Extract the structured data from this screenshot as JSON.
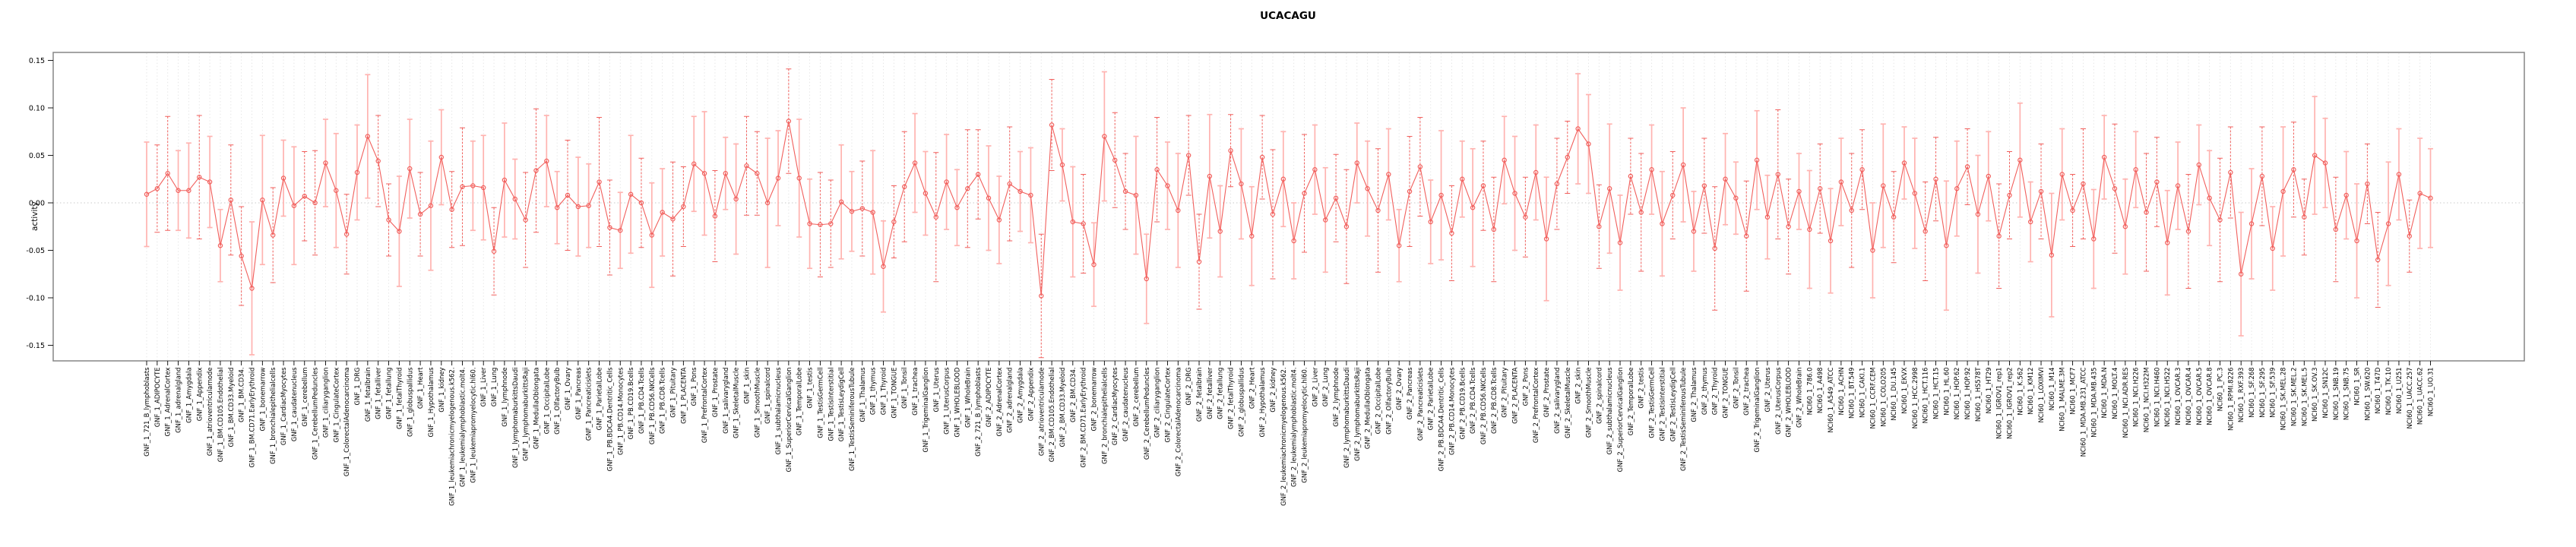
{
  "title": "UCACAGU",
  "chart_data": {
    "type": "scatter-errorbar",
    "title": "UCACAGU",
    "xlabel": "",
    "ylabel": "activity",
    "ylim": [
      -0.17,
      0.16
    ],
    "yticks": [
      -0.15,
      -0.1,
      -0.05,
      0.0,
      0.05,
      0.1,
      0.15
    ],
    "grid": "dotted vertical line per category, dotted horizontal line at 0",
    "legend": "none",
    "point_shape": "open-circle",
    "x_tick_rotation": 90,
    "colors": {
      "point": "#f15f5c",
      "line": "#f15f5c",
      "errorbar_dashed": "#f15f5c",
      "errorbar_solid": "#ffb3b0",
      "gridline": "#e3e3e3",
      "zero_line": "#c9c9c9",
      "box": "#858585",
      "text": "#000000"
    },
    "category_groups": [
      {
        "prefix": "GNF_1_",
        "names": [
          "721_B_lymphoblasts",
          "ADIPOCYTE",
          "AdrenalCortex",
          "adrenalgland",
          "Amygdala",
          "Appendix",
          "atrioventricularnode",
          "BM.CD105.Endothelial",
          "BM.CD33.Myeloid",
          "BM.CD34.",
          "BM.CD71.EarlyErythroid",
          "bonemarrow",
          "bronchialepithelialcells",
          "CardiacMyocytes",
          "caudatenucleus",
          "cerebellum",
          "CerebellumPeduncles",
          "ciliaryganglion",
          "CingulateCortex",
          "ColorectalAdenocarcinoma",
          "DRG",
          "fetalbrain",
          "fetalliver",
          "fetallung",
          "fetalThyroid",
          "globuspallidus",
          "Heart",
          "Hypothalamus",
          "kidney",
          "leukemiachronicmyelogenous.k562.",
          "leukemialymphoblastic.molt4.",
          "leukemiapromyelocytic.hl60.",
          "Liver",
          "Lung",
          "lymphnode",
          "lymphomaburkittsDaudi",
          "lymphomaburkittsRaji",
          "MedullaOblongata",
          "OccipitalLobe",
          "OlfactoryBulb",
          "Ovary",
          "Pancreas",
          "Pancreaticislets",
          "ParietalLobe",
          "PB.BDCA4.Dentritic_Cells",
          "PB.CD14.Monocytes",
          "PB.CD19.Bcells",
          "PB.CD4.Tcells",
          "PB.CD56.NKCells",
          "PB.CD8.Tcells",
          "Pituitary",
          "PLACENTA",
          "Pons",
          "PrefrontalCortex",
          "Prostate",
          "salivarygland",
          "SkeletalMuscle",
          "skin",
          "SmoothMuscle",
          "spinalcord",
          "subthalamicnucleus",
          "SuperiorCervicalGanglion",
          "TemporalLobe",
          "testis",
          "TestisGermCell",
          "TestisInterstitial",
          "TestisLeydigCell",
          "TestisSeminiferousTubule",
          "Thalamus",
          "thymus",
          "Thyroid",
          "TONGUE",
          "Tonsil",
          "trachea",
          "TrigeminalGanglion",
          "Uterus",
          "UterusCorpus",
          "WHOLEBLOOD",
          "WholeBrain"
        ]
      },
      {
        "prefix": "GNF_2_",
        "names": [
          "721_B_lymphoblasts",
          "ADIPOCYTE",
          "AdrenalCortex",
          "adrenalgland",
          "Amygdala",
          "Appendix",
          "atrioventricularnode",
          "BM.CD105.Endothelial",
          "BM.CD33.Myeloid",
          "BM.CD34.",
          "BM.CD71.EarlyErythroid",
          "bonemarrow",
          "bronchialepithelialcells",
          "CardiacMyocytes",
          "caudatenucleus",
          "cerebellum",
          "CerebellumPeduncles",
          "ciliaryganglion",
          "CingulateCortex",
          "ColorectalAdenocarcinoma",
          "DRG",
          "fetalbrain",
          "fetalliver",
          "fetallung",
          "fetalThyroid",
          "globuspallidus",
          "Heart",
          "Hypothalamus",
          "kidney",
          "leukemiachronicmyelogenous.k562.",
          "leukemialymphoblastic.molt4.",
          "leukemiapromyelocytic.hl60.",
          "Liver",
          "Lung",
          "lymphnode",
          "lymphomaburkittsDaudi",
          "lymphomaburkittsRaji",
          "MedullaOblongata",
          "OccipitalLobe",
          "OlfactoryBulb",
          "Ovary",
          "Pancreas",
          "Pancreaticislets",
          "ParietalLobe",
          "PB.BDCA4.Dentritic_Cells",
          "PB.CD14.Monocytes",
          "PB.CD19.Bcells",
          "PB.CD4.Tcells",
          "PB.CD56.NKCells",
          "PB.CD8.Tcells",
          "Pituitary",
          "PLACENTA",
          "Pons",
          "PrefrontalCortex",
          "Prostate",
          "salivarygland",
          "SkeletalMuscle",
          "skin",
          "SmoothMuscle",
          "spinalcord",
          "subthalamicnucleus",
          "SuperiorCervicalGanglion",
          "TemporalLobe",
          "testis",
          "TestisGermCell",
          "TestisInterstitial",
          "TestisLeydigCell",
          "TestisSeminiferousTubule",
          "Thalamus",
          "thymus",
          "Thyroid",
          "TONGUE",
          "Tonsil",
          "trachea",
          "TrigeminalGanglion",
          "Uterus",
          "UterusCorpus",
          "WHOLEBLOOD",
          "WholeBrain"
        ]
      },
      {
        "prefix": "NCI60_1_",
        "names": [
          "786.0",
          "A498",
          "A549_ATCC",
          "ACHN",
          "BT.549",
          "CAKI.1",
          "CCRF.CEM",
          "COLO205",
          "DU.145",
          "EKVX",
          "HCC.2998",
          "HCT.116",
          "HCT.15",
          "HL.60",
          "HOP.62",
          "HOP.92",
          "HS578T",
          "HT29",
          "IGROV1_rep1",
          "IGROV1_rep2",
          "K.562",
          "KM12",
          "LOXIMVI",
          "M14",
          "MALME.3M",
          "MCF7",
          "MDA.MB.231_ATCC",
          "MDA.MB.435",
          "MDA.N",
          "MOLT.4",
          "NCI.ADR.RES",
          "NCI.H226",
          "NCI.H322M",
          "NCI.H460",
          "NCI.H522",
          "OVCAR.3",
          "OVCAR.4",
          "OVCAR.5",
          "OVCAR.8",
          "PC.3",
          "RPMI.8226",
          "RXF.393",
          "SF.268",
          "SF.295",
          "SF.539",
          "SK.MEL.28",
          "SK.MEL.2",
          "SK.MEL.5",
          "SK.OV.3",
          "SN12C",
          "SNB.19",
          "SNB.75",
          "SR",
          "SW.620",
          "T47D",
          "TK.10",
          "U251",
          "UACC.257",
          "UACC.62",
          "UO.31"
        ]
      }
    ],
    "series": [
      {
        "name": "activity",
        "bar_style_pattern": "sddssds",
        "values": [
          0.009,
          0.015,
          0.031,
          0.013,
          0.013,
          0.027,
          0.022,
          -0.045,
          0.003,
          -0.056,
          -0.09,
          0.003,
          -0.034,
          0.026,
          -0.003,
          0.007,
          0.0,
          0.042,
          0.013,
          -0.033,
          0.032,
          0.07,
          0.044,
          -0.018,
          -0.03,
          0.036,
          -0.012,
          -0.003,
          0.048,
          -0.007,
          0.017,
          0.018,
          0.016,
          -0.051,
          0.024,
          0.004,
          -0.018,
          0.034,
          0.044,
          -0.005,
          0.008,
          -0.004,
          -0.003,
          0.022,
          -0.026,
          -0.029,
          0.009,
          0.0,
          -0.034,
          -0.01,
          -0.017,
          -0.004,
          0.041,
          0.031,
          -0.014,
          0.031,
          0.004,
          0.039,
          0.031,
          0.0,
          0.026,
          0.086,
          0.026,
          -0.022,
          -0.023,
          -0.022,
          0.001,
          -0.009,
          -0.006,
          -0.01,
          -0.067,
          -0.02,
          0.017,
          0.042,
          0.01,
          -0.015,
          0.022,
          -0.005,
          0.015,
          0.03,
          0.005,
          -0.018,
          0.02,
          0.012,
          0.008,
          -0.098,
          0.082,
          0.04,
          -0.02,
          -0.022,
          -0.065,
          0.07,
          0.045,
          0.012,
          0.008,
          -0.08,
          0.035,
          0.018,
          -0.008,
          0.05,
          -0.062,
          0.028,
          -0.03,
          0.055,
          0.02,
          -0.035,
          0.048,
          -0.012,
          0.025,
          -0.04,
          0.01,
          0.035,
          -0.018,
          0.005,
          -0.025,
          0.042,
          0.015,
          -0.008,
          0.03,
          -0.045,
          0.012,
          0.038,
          -0.02,
          0.008,
          -0.032,
          0.025,
          -0.005,
          0.018,
          -0.028,
          0.045,
          0.01,
          -0.015,
          0.032,
          -0.038,
          0.02,
          0.048,
          0.078,
          0.062,
          -0.025,
          0.015,
          -0.042,
          0.028,
          -0.01,
          0.035,
          -0.022,
          0.008,
          0.04,
          -0.03,
          0.018,
          -0.048,
          0.025,
          0.005,
          -0.035,
          0.045,
          -0.015,
          0.03,
          -0.025,
          0.012,
          -0.028,
          0.015,
          -0.04,
          0.022,
          -0.008,
          0.035,
          -0.05,
          0.018,
          -0.015,
          0.042,
          0.01,
          -0.03,
          0.025,
          -0.045,
          0.015,
          0.038,
          -0.012,
          0.028,
          -0.035,
          0.008,
          0.045,
          -0.02,
          0.012,
          -0.055,
          0.03,
          -0.008,
          0.02,
          -0.038,
          0.048,
          0.015,
          -0.025,
          0.035,
          -0.01,
          0.022,
          -0.042,
          0.018,
          -0.03,
          0.04,
          0.005,
          -0.018,
          0.032,
          -0.075,
          -0.022,
          0.028,
          -0.048,
          0.012,
          0.035,
          -0.015,
          0.05,
          0.042,
          -0.028,
          0.008,
          -0.04,
          0.02,
          -0.06,
          -0.022,
          0.03,
          -0.035,
          0.01,
          0.005
        ],
        "errors": [
          0.055,
          0.046,
          0.06,
          0.042,
          0.05,
          0.065,
          0.048,
          0.038,
          0.058,
          0.052,
          0.07,
          0.068,
          0.05,
          0.04,
          0.062,
          0.047,
          0.055,
          0.046,
          0.06,
          0.042,
          0.05,
          0.065,
          0.048,
          0.038,
          0.058,
          0.052,
          0.044,
          0.068,
          0.05,
          0.04,
          0.062,
          0.047,
          0.055,
          0.046,
          0.06,
          0.042,
          0.05,
          0.065,
          0.048,
          0.038,
          0.058,
          0.052,
          0.044,
          0.068,
          0.05,
          0.04,
          0.062,
          0.047,
          0.055,
          0.046,
          0.06,
          0.042,
          0.05,
          0.065,
          0.048,
          0.038,
          0.058,
          0.052,
          0.044,
          0.068,
          0.05,
          0.055,
          0.062,
          0.047,
          0.055,
          0.046,
          0.06,
          0.042,
          0.05,
          0.065,
          0.048,
          0.038,
          0.058,
          0.052,
          0.044,
          0.068,
          0.05,
          0.04,
          0.062,
          0.047,
          0.055,
          0.046,
          0.06,
          0.042,
          0.05,
          0.065,
          0.048,
          0.038,
          0.058,
          0.052,
          0.044,
          0.068,
          0.05,
          0.04,
          0.062,
          0.047,
          0.055,
          0.046,
          0.06,
          0.042,
          0.05,
          0.065,
          0.048,
          0.038,
          0.058,
          0.052,
          0.044,
          0.068,
          0.05,
          0.04,
          0.062,
          0.047,
          0.055,
          0.046,
          0.06,
          0.042,
          0.05,
          0.065,
          0.048,
          0.038,
          0.058,
          0.052,
          0.044,
          0.068,
          0.05,
          0.04,
          0.062,
          0.047,
          0.055,
          0.046,
          0.06,
          0.042,
          0.05,
          0.065,
          0.048,
          0.038,
          0.058,
          0.052,
          0.044,
          0.068,
          0.05,
          0.04,
          0.062,
          0.047,
          0.055,
          0.046,
          0.06,
          0.042,
          0.05,
          0.065,
          0.048,
          0.038,
          0.058,
          0.052,
          0.044,
          0.068,
          0.05,
          0.04,
          0.062,
          0.047,
          0.055,
          0.046,
          0.06,
          0.042,
          0.05,
          0.065,
          0.048,
          0.038,
          0.058,
          0.052,
          0.044,
          0.068,
          0.05,
          0.04,
          0.062,
          0.047,
          0.055,
          0.046,
          0.06,
          0.042,
          0.05,
          0.065,
          0.048,
          0.038,
          0.058,
          0.052,
          0.044,
          0.068,
          0.05,
          0.04,
          0.062,
          0.047,
          0.055,
          0.046,
          0.06,
          0.042,
          0.05,
          0.065,
          0.048,
          0.065,
          0.058,
          0.052,
          0.044,
          0.068,
          0.05,
          0.04,
          0.062,
          0.047,
          0.055,
          0.046,
          0.06,
          0.042,
          0.05,
          0.065,
          0.048,
          0.038,
          0.058,
          0.052
        ]
      }
    ]
  }
}
